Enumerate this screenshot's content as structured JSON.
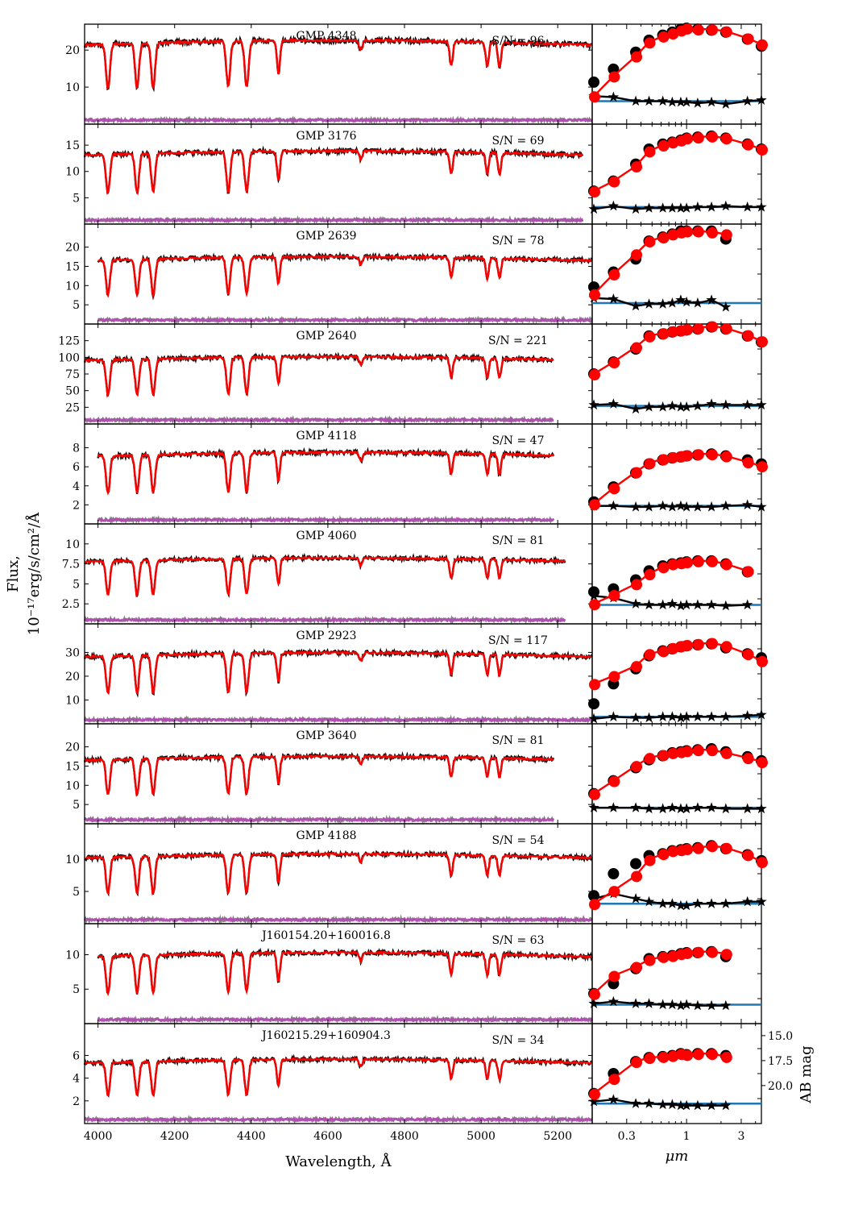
{
  "chart_data": {
    "type": "line",
    "left_xlabel": "Wavelength, Å",
    "left_ylabel_line1": "Flux,",
    "left_ylabel_line2": "10⁻¹⁷erg/s/cm²/Å",
    "right_xlabel": "μm",
    "right_ylabel": "AB mag",
    "left_xlim": [
      3965,
      5290
    ],
    "left_xticks": [
      4000,
      4200,
      4400,
      4600,
      4800,
      5000,
      5200
    ],
    "right_xlim_um": [
      0.15,
      4.5
    ],
    "right_xticks": [
      0.3,
      1,
      3
    ],
    "right_xticklabels": [
      "0.3",
      "1",
      "3"
    ],
    "mag_ticks": [
      "15.0",
      "17.5",
      "20.0"
    ],
    "bands_um": [
      0.155,
      0.23,
      0.36,
      0.47,
      0.62,
      0.75,
      0.89,
      1.0,
      1.25,
      1.65,
      2.2,
      3.4,
      4.5
    ],
    "lines_A": [
      4026,
      4102,
      4144,
      4340,
      4388,
      4471,
      4686,
      4922,
      5016,
      5048
    ],
    "colors": {
      "data": "#000000",
      "model": "#ff0000",
      "residual": "#bb44bb",
      "noise": "#808080",
      "sed_level": "#1f77b4"
    },
    "panels": [
      {
        "name": "GMP 4348",
        "sn_label": "S/N = 96",
        "continuum": 22,
        "yticks": [
          10,
          20
        ],
        "ylim": [
          0,
          27
        ],
        "wl_start": 3965,
        "wl_end": 5290,
        "sed_n": 13,
        "sed_circle": [
          0.42,
          0.55,
          0.72,
          0.84,
          0.89,
          0.92,
          0.95,
          0.96,
          0.95,
          0.94,
          0.92,
          0.85,
          0.78
        ],
        "sed_model": [
          0.28,
          0.48,
          0.68,
          0.82,
          0.88,
          0.91,
          0.94,
          0.96,
          0.95,
          0.95,
          0.93,
          0.86,
          0.8
        ],
        "sed_star": [
          0.28,
          0.27,
          0.23,
          0.23,
          0.23,
          0.22,
          0.22,
          0.22,
          0.21,
          0.22,
          0.2,
          0.23,
          0.24
        ],
        "sed_hline": 0.23
      },
      {
        "name": "GMP 3176",
        "sn_label": "S/N = 69",
        "continuum": 13.5,
        "yticks": [
          5,
          10,
          15
        ],
        "ylim": [
          0,
          19
        ],
        "wl_start": 3965,
        "wl_end": 5265,
        "sed_n": 13,
        "sed_circle": [
          0.33,
          0.43,
          0.6,
          0.75,
          0.8,
          0.82,
          0.84,
          0.86,
          0.87,
          0.88,
          0.86,
          0.8,
          0.75
        ],
        "sed_model": [
          0.33,
          0.43,
          0.58,
          0.73,
          0.79,
          0.82,
          0.84,
          0.86,
          0.87,
          0.88,
          0.86,
          0.8,
          0.75
        ],
        "sed_star": [
          0.15,
          0.18,
          0.15,
          0.16,
          0.16,
          0.16,
          0.16,
          0.16,
          0.17,
          0.17,
          0.18,
          0.17,
          0.17
        ],
        "sed_hline": 0.17
      },
      {
        "name": "GMP 2639",
        "sn_label": "S/N = 78",
        "continuum": 17,
        "yticks": [
          5,
          10,
          15,
          20
        ],
        "ylim": [
          0,
          26
        ],
        "wl_start": 4000,
        "wl_end": 5290,
        "sed_n": 11,
        "sed_circle": [
          0.37,
          0.52,
          0.65,
          0.83,
          0.87,
          0.9,
          0.93,
          0.93,
          0.93,
          0.93,
          0.85
        ],
        "sed_model": [
          0.3,
          0.5,
          0.7,
          0.83,
          0.87,
          0.9,
          0.92,
          0.93,
          0.93,
          0.92,
          0.9
        ],
        "sed_star": [
          0.26,
          0.25,
          0.18,
          0.2,
          0.2,
          0.21,
          0.24,
          0.22,
          0.21,
          0.24,
          0.17
        ],
        "sed_hline": 0.21
      },
      {
        "name": "GMP 2640",
        "sn_label": "S/N = 221",
        "continuum": 98,
        "yticks": [
          25,
          50,
          75,
          100,
          125
        ],
        "ylim": [
          0,
          150
        ],
        "wl_start": 3965,
        "wl_end": 5190,
        "sed_n": 13,
        "sed_circle": [
          0.5,
          0.62,
          0.75,
          0.88,
          0.9,
          0.92,
          0.93,
          0.94,
          0.95,
          0.97,
          0.95,
          0.88,
          0.82
        ],
        "sed_model": [
          0.5,
          0.62,
          0.77,
          0.88,
          0.91,
          0.93,
          0.94,
          0.95,
          0.96,
          0.98,
          0.96,
          0.89,
          0.83
        ],
        "sed_star": [
          0.19,
          0.2,
          0.15,
          0.17,
          0.17,
          0.18,
          0.17,
          0.17,
          0.18,
          0.2,
          0.19,
          0.19,
          0.19
        ],
        "sed_hline": 0.18
      },
      {
        "name": "GMP 4118",
        "sn_label": "S/N = 47",
        "continuum": 7.3,
        "yticks": [
          2,
          4,
          6,
          8
        ],
        "ylim": [
          0,
          10.5
        ],
        "wl_start": 4000,
        "wl_end": 5190,
        "sed_n": 13,
        "sed_circle": [
          0.22,
          0.37,
          0.51,
          0.6,
          0.64,
          0.66,
          0.67,
          0.68,
          0.69,
          0.7,
          0.68,
          0.64,
          0.6
        ],
        "sed_model": [
          0.2,
          0.36,
          0.52,
          0.61,
          0.65,
          0.67,
          0.68,
          0.69,
          0.7,
          0.7,
          0.68,
          0.62,
          0.58
        ],
        "sed_star": [
          0.18,
          0.18,
          0.17,
          0.17,
          0.18,
          0.17,
          0.18,
          0.17,
          0.17,
          0.17,
          0.18,
          0.19,
          0.17
        ],
        "sed_hline": 0.18
      },
      {
        "name": "GMP 4060",
        "sn_label": "S/N = 81",
        "continuum": 8,
        "yticks": [
          2.5,
          5.0,
          7.5,
          10.0
        ],
        "ylim": [
          0,
          12.5
        ],
        "wl_start": 3965,
        "wl_end": 5220,
        "sed_n": 12,
        "sed_circle": [
          0.32,
          0.35,
          0.44,
          0.53,
          0.58,
          0.6,
          0.61,
          0.62,
          0.63,
          0.63,
          0.6,
          0.52
        ],
        "sed_model": [
          0.2,
          0.29,
          0.4,
          0.5,
          0.57,
          0.6,
          0.61,
          0.62,
          0.63,
          0.63,
          0.6,
          0.53
        ],
        "sed_star": [
          0.28,
          0.26,
          0.2,
          0.19,
          0.19,
          0.2,
          0.18,
          0.19,
          0.19,
          0.19,
          0.18,
          0.19
        ],
        "sed_hline": 0.19
      },
      {
        "name": "GMP 2923",
        "sn_label": "S/N = 117",
        "continuum": 29,
        "yticks": [
          10,
          20,
          30
        ],
        "ylim": [
          0,
          42
        ],
        "wl_start": 3965,
        "wl_end": 5290,
        "sed_n": 13,
        "sed_circle": [
          0.2,
          0.4,
          0.55,
          0.68,
          0.73,
          0.75,
          0.77,
          0.78,
          0.79,
          0.8,
          0.76,
          0.7,
          0.66
        ],
        "sed_model": [
          0.4,
          0.48,
          0.58,
          0.7,
          0.73,
          0.76,
          0.78,
          0.79,
          0.8,
          0.81,
          0.78,
          0.7,
          0.63
        ],
        "sed_star": [
          0.05,
          0.07,
          0.06,
          0.06,
          0.07,
          0.07,
          0.06,
          0.07,
          0.07,
          0.07,
          0.07,
          0.08,
          0.09
        ],
        "sed_hline": 0.07
      },
      {
        "name": "GMP 3640",
        "sn_label": "S/N = 81",
        "continuum": 17,
        "yticks": [
          5,
          10,
          15,
          20
        ],
        "ylim": [
          0,
          26
        ],
        "wl_start": 3965,
        "wl_end": 5190,
        "sed_n": 13,
        "sed_circle": [
          0.3,
          0.43,
          0.56,
          0.64,
          0.68,
          0.71,
          0.72,
          0.73,
          0.74,
          0.75,
          0.72,
          0.67,
          0.63
        ],
        "sed_model": [
          0.3,
          0.43,
          0.58,
          0.66,
          0.69,
          0.71,
          0.72,
          0.73,
          0.74,
          0.74,
          0.71,
          0.66,
          0.62
        ],
        "sed_star": [
          0.16,
          0.16,
          0.16,
          0.15,
          0.15,
          0.16,
          0.15,
          0.15,
          0.16,
          0.16,
          0.15,
          0.15,
          0.15
        ],
        "sed_hline": 0.16
      },
      {
        "name": "GMP 4188",
        "sn_label": "S/N = 54",
        "continuum": 10.5,
        "yticks": [
          5,
          10
        ],
        "ylim": [
          0,
          15.5
        ],
        "wl_start": 3965,
        "wl_end": 5290,
        "sed_n": 13,
        "sed_circle": [
          0.28,
          0.5,
          0.6,
          0.68,
          0.7,
          0.73,
          0.74,
          0.75,
          0.76,
          0.78,
          0.75,
          0.69,
          0.63
        ],
        "sed_model": [
          0.2,
          0.33,
          0.48,
          0.64,
          0.7,
          0.73,
          0.74,
          0.75,
          0.76,
          0.78,
          0.76,
          0.69,
          0.62
        ],
        "sed_star": [
          0.25,
          0.3,
          0.25,
          0.22,
          0.2,
          0.2,
          0.18,
          0.18,
          0.2,
          0.2,
          0.2,
          0.22,
          0.22
        ],
        "sed_hline": 0.2
      },
      {
        "name": "J160154.20+160016.8",
        "sn_label": "S/N = 63",
        "continuum": 10,
        "yticks": [
          5,
          10
        ],
        "ylim": [
          0,
          14.5
        ],
        "wl_start": 4000,
        "wl_end": 5290,
        "sed_n": 11,
        "sed_circle": [
          0.3,
          0.4,
          0.55,
          0.65,
          0.67,
          0.68,
          0.7,
          0.71,
          0.71,
          0.72,
          0.67
        ],
        "sed_model": [
          0.3,
          0.48,
          0.57,
          0.64,
          0.67,
          0.68,
          0.7,
          0.71,
          0.72,
          0.72,
          0.7
        ],
        "sed_star": [
          0.2,
          0.22,
          0.2,
          0.2,
          0.19,
          0.19,
          0.18,
          0.19,
          0.18,
          0.18,
          0.18
        ],
        "sed_hline": 0.19
      },
      {
        "name": "J160215.29+160904.3",
        "sn_label": "S/N = 34",
        "continuum": 5.5,
        "yticks": [
          2,
          4,
          6
        ],
        "ylim": [
          0,
          8.8
        ],
        "wl_start": 3965,
        "wl_end": 5290,
        "sed_n": 11,
        "sed_circle": [
          0.3,
          0.5,
          0.62,
          0.66,
          0.67,
          0.68,
          0.7,
          0.69,
          0.7,
          0.7,
          0.68
        ],
        "sed_model": [
          0.3,
          0.45,
          0.62,
          0.66,
          0.67,
          0.68,
          0.7,
          0.69,
          0.7,
          0.7,
          0.67
        ],
        "sed_star": [
          0.22,
          0.24,
          0.2,
          0.2,
          0.19,
          0.19,
          0.18,
          0.18,
          0.18,
          0.18,
          0.18
        ],
        "sed_hline": 0.2
      }
    ]
  }
}
